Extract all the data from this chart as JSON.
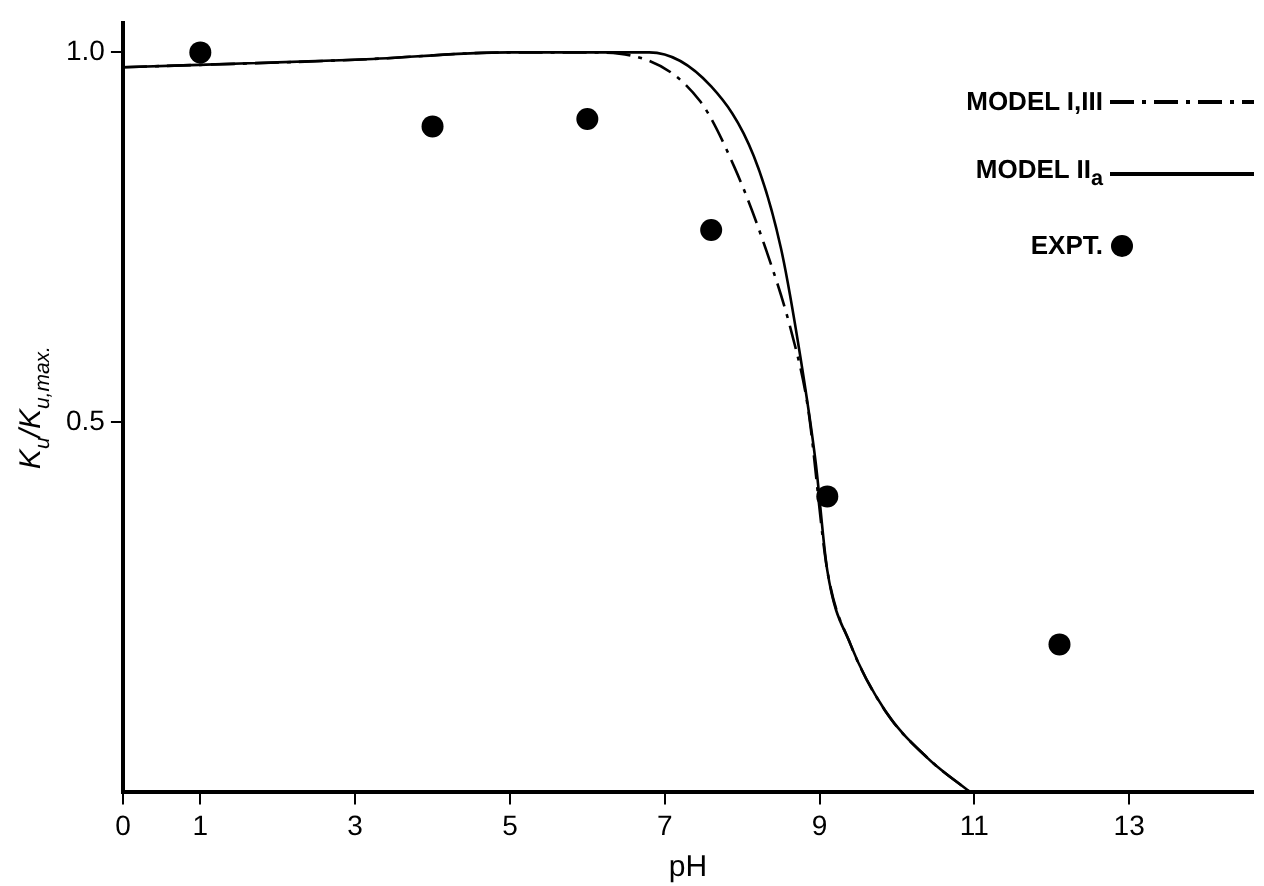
{
  "chart_data": {
    "type": "line",
    "xlabel": "pH",
    "ylabel": "K$_{u}$/K$_{u,max.}$",
    "xlim": [
      0,
      14.6
    ],
    "xticks": [
      0,
      1,
      3,
      5,
      7,
      9,
      11,
      13
    ],
    "ylim": [
      0,
      1.04
    ],
    "yticks": [
      0.5,
      {
        "value": 1,
        "label": "1.0"
      }
    ],
    "grid": false,
    "legend": "top right",
    "series": [
      {
        "name": "MODEL I,III",
        "type": "line",
        "color": "#000000",
        "marker": "none",
        "line_style": "dashed",
        "x": [
          0,
          3,
          5,
          6,
          6.6,
          7.45,
          7.9,
          8.3,
          8.65,
          8.85,
          9.1,
          9.4,
          9.85,
          10.4,
          10.95
        ],
        "values": [
          0.98,
          0.99,
          1.0,
          1.0,
          0.995,
          0.935,
          0.845,
          0.736,
          0.617,
          0.52,
          0.3,
          0.2,
          0.11,
          0.046,
          0
        ]
      },
      {
        "name": "MODEL II$_{a}$",
        "type": "line",
        "color": "#000000",
        "marker": "none",
        "line_style": "solid",
        "x": [
          0,
          3,
          5,
          6.3,
          6.8,
          7.6,
          8.15,
          8.5,
          8.75,
          8.95,
          9.1,
          9.4,
          9.85,
          10.4,
          10.95
        ],
        "values": [
          0.98,
          0.99,
          1.0,
          1.0,
          1.0,
          0.954,
          0.86,
          0.736,
          0.59,
          0.446,
          0.3,
          0.2,
          0.11,
          0.046,
          0
        ]
      },
      {
        "name": "EXPT.",
        "type": "scatter",
        "color": "#000000",
        "marker": "circle",
        "x": [
          1,
          4,
          6,
          7.6,
          9.1,
          12.1
        ],
        "values": [
          1.0,
          0.9,
          0.91,
          0.76,
          0.4,
          0.2
        ]
      }
    ]
  }
}
